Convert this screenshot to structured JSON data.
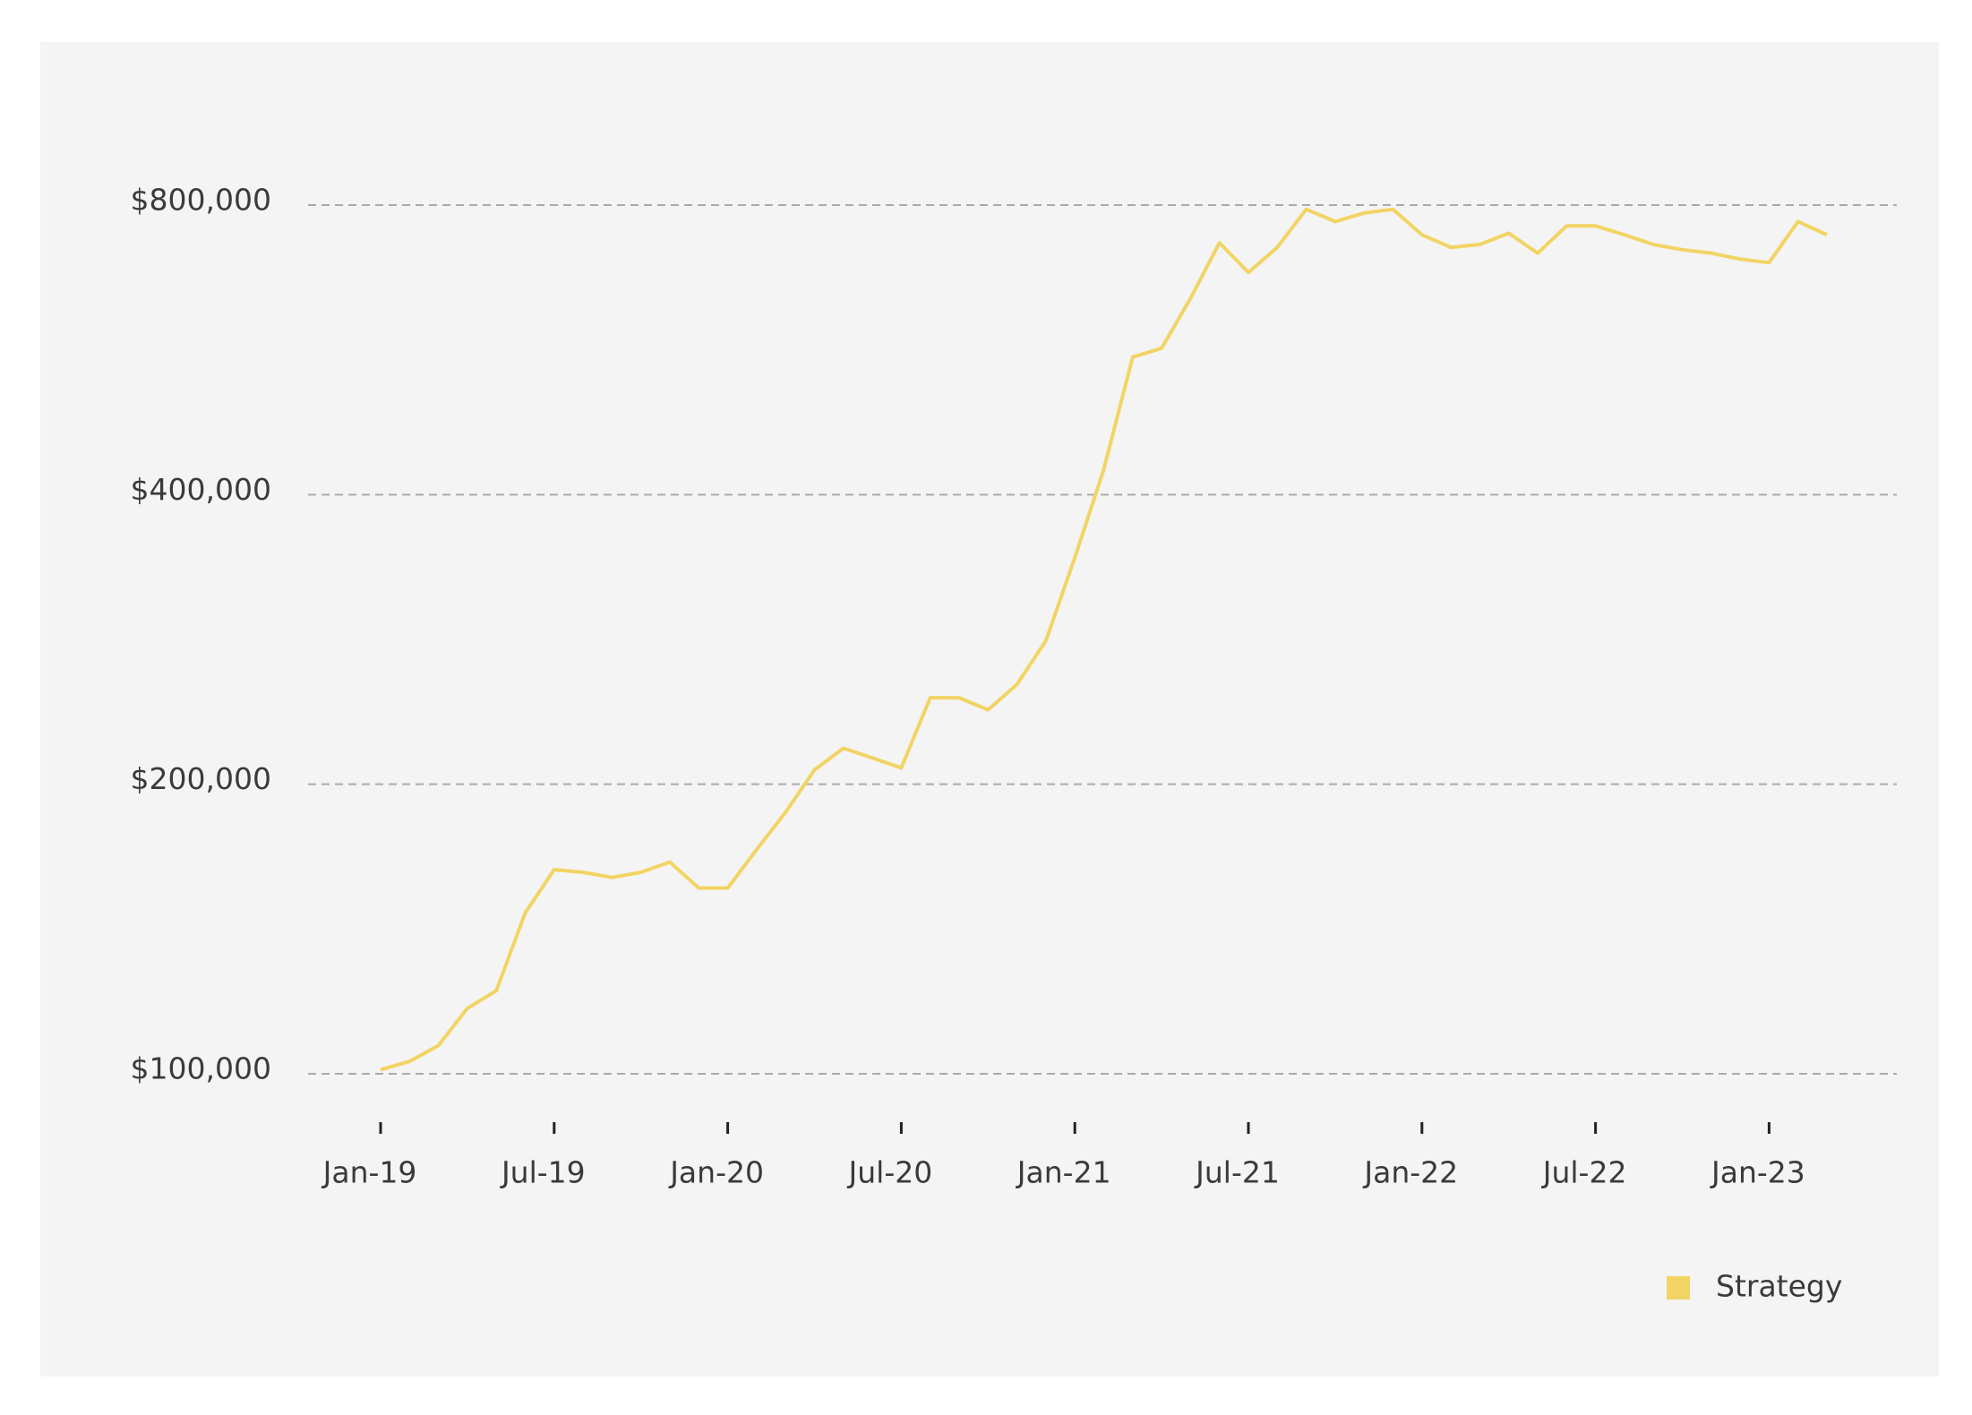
{
  "chart_data": {
    "type": "line",
    "yscale": "log",
    "grid": true,
    "legend": "bottom-right",
    "x": [
      "2019-01",
      "2019-02",
      "2019-03",
      "2019-04",
      "2019-05",
      "2019-06",
      "2019-07",
      "2019-08",
      "2019-09",
      "2019-10",
      "2019-11",
      "2019-12",
      "2020-01",
      "2020-02",
      "2020-03",
      "2020-04",
      "2020-05",
      "2020-06",
      "2020-07",
      "2020-08",
      "2020-09",
      "2020-10",
      "2020-11",
      "2020-12",
      "2021-01",
      "2021-02",
      "2021-03",
      "2021-04",
      "2021-05",
      "2021-06",
      "2021-07",
      "2021-08",
      "2021-09",
      "2021-10",
      "2021-11",
      "2021-12",
      "2022-01",
      "2022-02",
      "2022-03",
      "2022-04",
      "2022-05",
      "2022-06",
      "2022-07",
      "2022-08",
      "2022-09",
      "2022-10",
      "2022-11",
      "2022-12",
      "2023-01",
      "2023-02",
      "2023-03"
    ],
    "series": [
      {
        "name": "Strategy",
        "color": "#f2d464",
        "values": [
          101000,
          103000,
          107000,
          117000,
          122000,
          147000,
          163000,
          162000,
          160000,
          162000,
          166000,
          156000,
          156000,
          171000,
          187000,
          207000,
          218000,
          213000,
          208000,
          246000,
          246000,
          239000,
          254000,
          282000,
          344000,
          425000,
          556000,
          568000,
          640000,
          731000,
          681000,
          723000,
          792000,
          769000,
          785000,
          792000,
          745000,
          723000,
          728000,
          748000,
          713000,
          761000,
          761000,
          745000,
          728000,
          719000,
          713000,
          703000,
          697000,
          769000,
          745000
        ]
      }
    ],
    "ylim": [
      100000,
      800000
    ],
    "yticks": [
      {
        "value": 100000,
        "label": "$100,000"
      },
      {
        "value": 200000,
        "label": "$200,000"
      },
      {
        "value": 400000,
        "label": "$400,000"
      },
      {
        "value": 800000,
        "label": "$800,000"
      }
    ],
    "xticks": [
      {
        "value": "2019-01",
        "label": "Jan-19"
      },
      {
        "value": "2019-07",
        "label": "Jul-19"
      },
      {
        "value": "2020-01",
        "label": "Jan-20"
      },
      {
        "value": "2020-07",
        "label": "Jul-20"
      },
      {
        "value": "2021-01",
        "label": "Jan-21"
      },
      {
        "value": "2021-07",
        "label": "Jul-21"
      },
      {
        "value": "2022-01",
        "label": "Jan-22"
      },
      {
        "value": "2022-07",
        "label": "Jul-22"
      },
      {
        "value": "2023-01",
        "label": "Jan-23"
      }
    ]
  }
}
